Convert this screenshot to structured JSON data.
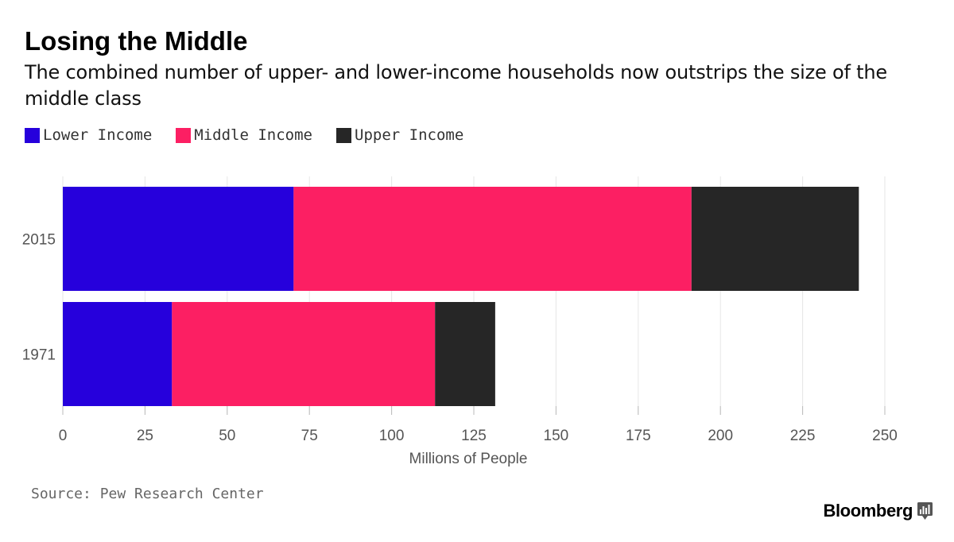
{
  "colors": {
    "lower": "#2600dc",
    "middle": "#fc1f63",
    "upper": "#262626",
    "grid": "#e6e6e6",
    "axis_text": "#555555"
  },
  "legend": {
    "items": [
      {
        "label": "Lower Income",
        "color": "#2600dc",
        "icon": "square-swatch-icon"
      },
      {
        "label": "Middle Income",
        "color": "#fc1f63",
        "icon": "square-swatch-icon"
      },
      {
        "label": "Upper Income",
        "color": "#262626",
        "icon": "square-swatch-icon"
      }
    ]
  },
  "footer": {
    "source": "Source: Pew Research Center",
    "brand": "Bloomberg",
    "brand_icon": "bloomberg-chart-icon"
  },
  "chart_data": {
    "type": "bar",
    "orientation": "horizontal",
    "stacked": true,
    "title": "Losing the Middle",
    "subtitle": "The combined number of upper- and lower-income households now outstrips the size of the middle class",
    "categories": [
      "2015",
      "1971"
    ],
    "series": [
      {
        "name": "Lower Income",
        "values": [
          70.2,
          33.2
        ]
      },
      {
        "name": "Middle Income",
        "values": [
          121.0,
          80.0
        ]
      },
      {
        "name": "Upper Income",
        "values": [
          50.9,
          18.3
        ]
      }
    ],
    "xlabel": "Millions of People",
    "ylabel": "",
    "xlim": [
      0,
      250
    ],
    "xticks": [
      0,
      25,
      50,
      75,
      100,
      125,
      150,
      175,
      200,
      225,
      250
    ],
    "grid": true,
    "legend_position": "top-left"
  }
}
